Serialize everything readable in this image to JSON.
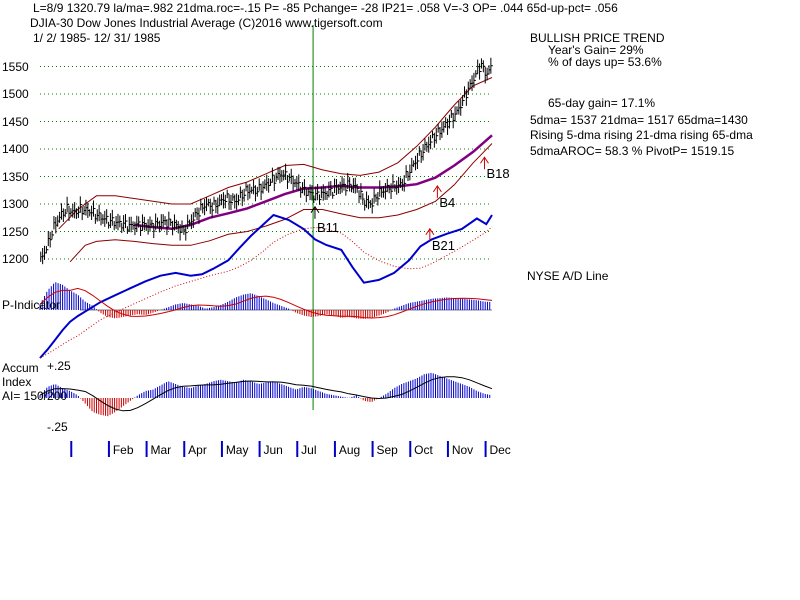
{
  "header": {
    "line1": "L=8/9  1320.79  la/ma=.982 21dma.roc=-.15 P= -85 Pchange= -28 IP21= .058 V=-3 OP= .044 65d-up-pct= .056",
    "line2": "DJIA-30  Dow Jones Industrial Average   (C)2016 www.tigersoft.com",
    "line3": "1/ 2/ 1985- 12/ 31/ 1985"
  },
  "right_panel": {
    "trend_title": "BULLISH PRICE TREND",
    "years_gain": "Year's Gain= 29%",
    "days_up": "% of days up= 53.6%",
    "gain65": "65-day gain= 17.1%",
    "dma_line": "5dma= 1537 21dma= 1517 65dma=1430",
    "rising_line": "Rising 5-dma rising 21-dma rising 65-dma",
    "aroc_line": "5dmaAROC= 58.3 %  PivotP= 1519.15",
    "nyse_label": "NYSE A/D Line"
  },
  "panel_labels": {
    "p_indicator": "P-Indicator",
    "accum": "Accum",
    "index": "Index",
    "plus25": "+.25",
    "ai": "AI= 150/200",
    "minus25": "-.25"
  },
  "colors": {
    "price_bars": "#000000",
    "bands": "#8b0000",
    "ma65": "#800080",
    "ad_line": "#0000cc",
    "indicator_pos": "#0000cc",
    "indicator_neg": "#cc0000",
    "gridline": "#008000",
    "signal_marker": "#008000",
    "buy_arrow": "#cc0000"
  },
  "chart_data": {
    "type": "line",
    "title": "Dow Jones Industrial Average 1985",
    "y_ticks": [
      1200,
      1250,
      1300,
      1350,
      1400,
      1450,
      1500,
      1550
    ],
    "ylim": [
      1180,
      1580
    ],
    "x_months": [
      "Feb",
      "Mar",
      "Apr",
      "May",
      "Jun",
      "Jul",
      "Aug",
      "Sep",
      "Oct",
      "Nov",
      "Dec"
    ],
    "x_range_months": [
      0,
      12
    ],
    "signal_marker_month": 7.25,
    "price_series": {
      "name": "DJIA close",
      "t": [
        0.0,
        0.2,
        0.35,
        0.5,
        0.7,
        0.9,
        1.1,
        1.3,
        1.5,
        1.8,
        2.1,
        2.4,
        2.7,
        3.0,
        3.3,
        3.6,
        3.8,
        4.0,
        4.2,
        4.4,
        4.6,
        4.9,
        5.2,
        5.5,
        5.8,
        6.1,
        6.4,
        6.6,
        6.8,
        7.0,
        7.3,
        7.6,
        7.9,
        8.2,
        8.4,
        8.6,
        8.8,
        9.0,
        9.3,
        9.6,
        9.9,
        10.2,
        10.5,
        10.8,
        11.1,
        11.3,
        11.5,
        11.7,
        11.85,
        12.0
      ],
      "close": [
        1195,
        1225,
        1255,
        1275,
        1290,
        1285,
        1290,
        1288,
        1280,
        1270,
        1265,
        1260,
        1262,
        1260,
        1268,
        1262,
        1250,
        1268,
        1285,
        1300,
        1295,
        1310,
        1305,
        1325,
        1325,
        1340,
        1355,
        1348,
        1338,
        1325,
        1315,
        1320,
        1330,
        1335,
        1330,
        1305,
        1300,
        1320,
        1330,
        1335,
        1370,
        1400,
        1425,
        1445,
        1470,
        1500,
        1525,
        1555,
        1535,
        1550
      ]
    },
    "ma65_series": {
      "name": "65-dma",
      "t": [
        2.5,
        3.0,
        3.5,
        4.0,
        4.5,
        5.0,
        5.5,
        6.0,
        6.5,
        7.0,
        7.5,
        8.0,
        8.5,
        9.0,
        9.5,
        10.0,
        10.5,
        11.0,
        11.5,
        12.0
      ],
      "values": [
        1262,
        1258,
        1255,
        1262,
        1275,
        1283,
        1292,
        1305,
        1318,
        1328,
        1330,
        1333,
        1330,
        1330,
        1332,
        1336,
        1348,
        1370,
        1395,
        1425
      ]
    },
    "upper_band": {
      "t": [
        0.5,
        1.0,
        1.5,
        2.0,
        2.5,
        3.0,
        3.5,
        4.0,
        4.5,
        5.0,
        5.5,
        6.0,
        6.5,
        7.0,
        7.5,
        8.0,
        8.5,
        9.0,
        9.5,
        10.0,
        10.5,
        11.0,
        11.5,
        12.0
      ],
      "values": [
        1255,
        1290,
        1315,
        1315,
        1310,
        1305,
        1300,
        1300,
        1315,
        1330,
        1340,
        1355,
        1370,
        1372,
        1362,
        1355,
        1352,
        1358,
        1375,
        1405,
        1440,
        1480,
        1515,
        1530
      ]
    },
    "lower_band": {
      "t": [
        0.8,
        1.2,
        1.5,
        2.0,
        2.5,
        3.0,
        3.5,
        4.0,
        4.5,
        5.0,
        5.5,
        6.0,
        6.5,
        7.0,
        7.5,
        8.0,
        8.5,
        9.0,
        9.5,
        10.0,
        10.5,
        11.0,
        11.5,
        12.0
      ],
      "values": [
        1195,
        1225,
        1232,
        1235,
        1232,
        1228,
        1225,
        1225,
        1233,
        1245,
        1250,
        1260,
        1272,
        1290,
        1290,
        1282,
        1275,
        1275,
        1280,
        1290,
        1305,
        1335,
        1375,
        1410
      ]
    },
    "signals": [
      {
        "label": "B11",
        "t": 7.3,
        "price": 1295
      },
      {
        "label": "B21",
        "t": 10.35,
        "price": 1255
      },
      {
        "label": "B4",
        "t": 10.55,
        "price": 1333
      },
      {
        "label": "B18",
        "t": 11.8,
        "price": 1385
      }
    ],
    "ad_line": {
      "name": "NYSE A/D Line",
      "t": [
        0.0,
        0.2,
        0.4,
        0.6,
        0.8,
        1.0,
        1.3,
        1.6,
        2.0,
        2.4,
        2.8,
        3.2,
        3.6,
        4.0,
        4.3,
        4.6,
        5.0,
        5.3,
        5.6,
        5.9,
        6.2,
        6.6,
        7.0,
        7.3,
        7.6,
        8.0,
        8.3,
        8.6,
        9.0,
        9.4,
        9.8,
        10.1,
        10.4,
        10.8,
        11.2,
        11.6,
        11.85,
        12.0
      ],
      "values": [
        0,
        12,
        26,
        40,
        52,
        60,
        70,
        80,
        90,
        100,
        110,
        118,
        122,
        118,
        120,
        128,
        140,
        158,
        175,
        190,
        205,
        198,
        185,
        170,
        162,
        155,
        130,
        108,
        112,
        122,
        140,
        160,
        170,
        178,
        185,
        200,
        192,
        205
      ]
    },
    "p_indicator": {
      "name": "P-Indicator",
      "t": [
        0.0,
        0.2,
        0.4,
        0.6,
        0.8,
        1.0,
        1.2,
        1.4,
        1.6,
        1.8,
        2.0,
        2.2,
        2.4,
        2.6,
        2.8,
        3.0,
        3.2,
        3.4,
        3.6,
        3.8,
        4.0,
        4.2,
        4.4,
        4.6,
        4.8,
        5.0,
        5.2,
        5.4,
        5.6,
        5.8,
        6.0,
        6.2,
        6.4,
        6.6,
        6.8,
        7.0,
        7.2,
        7.4,
        7.6,
        7.8,
        8.0,
        8.2,
        8.4,
        8.6,
        8.8,
        9.0,
        9.2,
        9.4,
        9.6,
        9.8,
        10.0,
        10.2,
        10.4,
        10.6,
        10.8,
        11.0,
        11.2,
        11.4,
        11.6,
        11.8,
        12.0
      ],
      "values": [
        20,
        70,
        100,
        90,
        70,
        55,
        30,
        15,
        -10,
        -25,
        -30,
        -25,
        -20,
        -15,
        -18,
        -10,
        0,
        10,
        20,
        25,
        20,
        15,
        5,
        10,
        18,
        30,
        45,
        55,
        60,
        50,
        38,
        25,
        15,
        5,
        -10,
        -20,
        -25,
        -22,
        -15,
        -20,
        -28,
        -25,
        -30,
        -32,
        -28,
        -20,
        -10,
        5,
        15,
        25,
        30,
        35,
        40,
        42,
        45,
        43,
        40,
        38,
        35,
        30,
        28
      ]
    },
    "accum_index": {
      "name": "Accum Index",
      "t": [
        0.0,
        0.2,
        0.4,
        0.6,
        0.8,
        1.0,
        1.2,
        1.4,
        1.6,
        1.8,
        2.0,
        2.2,
        2.4,
        2.6,
        2.8,
        3.0,
        3.2,
        3.4,
        3.6,
        3.8,
        4.0,
        4.2,
        4.4,
        4.6,
        4.8,
        5.0,
        5.2,
        5.4,
        5.6,
        5.8,
        6.0,
        6.2,
        6.4,
        6.6,
        6.8,
        7.0,
        7.2,
        7.4,
        7.6,
        7.8,
        8.0,
        8.2,
        8.4,
        8.6,
        8.8,
        9.0,
        9.2,
        9.4,
        9.6,
        9.8,
        10.0,
        10.2,
        10.4,
        10.6,
        10.8,
        11.0,
        11.2,
        11.4,
        11.6,
        11.8,
        12.0
      ],
      "values": [
        0.02,
        0.08,
        0.1,
        0.07,
        0.05,
        0.02,
        -0.04,
        -0.1,
        -0.12,
        -0.13,
        -0.1,
        -0.06,
        -0.02,
        0.02,
        0.05,
        0.06,
        0.09,
        0.12,
        0.1,
        0.08,
        0.07,
        0.09,
        0.1,
        0.12,
        0.13,
        0.12,
        0.11,
        0.13,
        0.12,
        0.1,
        0.11,
        0.12,
        0.1,
        0.08,
        0.06,
        0.08,
        0.07,
        0.05,
        0.03,
        0.02,
        0.01,
        0.0,
        0.02,
        -0.02,
        -0.03,
        0.0,
        0.03,
        0.07,
        0.1,
        0.12,
        0.14,
        0.17,
        0.18,
        0.16,
        0.14,
        0.12,
        0.1,
        0.08,
        0.05,
        0.03,
        0.02
      ]
    }
  }
}
